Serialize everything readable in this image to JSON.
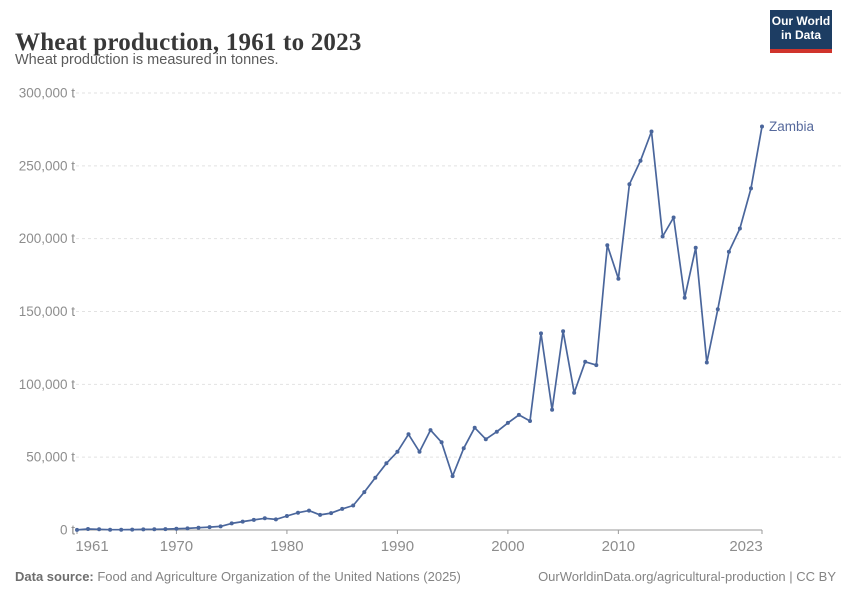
{
  "header": {
    "title": "Wheat production, 1961 to 2023",
    "subtitle": "Wheat production is measured in tonnes."
  },
  "logo": {
    "line1": "Our World",
    "line2": "in Data"
  },
  "colors": {
    "line": "#4a669c",
    "entity_label": "#56699c",
    "grid": "#e2e2e2",
    "axis": "#999999",
    "tick_text": "#8d8d8d",
    "logo_bg": "#1d3d63",
    "logo_accent": "#d0342c"
  },
  "chart_data": {
    "type": "line",
    "title": "Wheat production, 1961 to 2023",
    "unit": "tonnes",
    "xlabel": "",
    "ylabel": "",
    "xlim": [
      1961,
      2023
    ],
    "ylim": [
      0,
      300000
    ],
    "grid": "horizontal-dashed",
    "legend_position": "end-of-line-label",
    "x_ticks": [
      1961,
      1970,
      1980,
      1990,
      2000,
      2010,
      2023
    ],
    "y_ticks": [
      {
        "value": 0,
        "label": "0 t"
      },
      {
        "value": 50000,
        "label": "50,000 t"
      },
      {
        "value": 100000,
        "label": "100,000 t"
      },
      {
        "value": 150000,
        "label": "150,000 t"
      },
      {
        "value": 200000,
        "label": "200,000 t"
      },
      {
        "value": 250000,
        "label": "250,000 t"
      },
      {
        "value": 300000,
        "label": "300,000 t"
      }
    ],
    "x": [
      1961,
      1962,
      1963,
      1964,
      1965,
      1966,
      1967,
      1968,
      1969,
      1970,
      1971,
      1972,
      1973,
      1974,
      1975,
      1976,
      1977,
      1978,
      1979,
      1980,
      1981,
      1982,
      1983,
      1984,
      1985,
      1986,
      1987,
      1988,
      1989,
      1990,
      1991,
      1992,
      1993,
      1994,
      1995,
      1996,
      1997,
      1998,
      1999,
      2000,
      2001,
      2002,
      2003,
      2004,
      2005,
      2006,
      2007,
      2008,
      2009,
      2010,
      2011,
      2012,
      2013,
      2014,
      2015,
      2016,
      2017,
      2018,
      2019,
      2020,
      2021,
      2022,
      2023
    ],
    "series": [
      {
        "name": "Zambia",
        "values": [
          100,
          700,
          500,
          200,
          200,
          300,
          400,
          500,
          600,
          900,
          1100,
          1600,
          2000,
          2500,
          4500,
          5800,
          6900,
          8000,
          7300,
          9600,
          11900,
          13300,
          10400,
          11600,
          14500,
          16800,
          26000,
          35900,
          45800,
          53700,
          65700,
          53700,
          68600,
          60200,
          37000,
          56100,
          70200,
          62300,
          67500,
          73500,
          79000,
          74800,
          135000,
          82500,
          136500,
          94200,
          115500,
          113200,
          195500,
          172500,
          237300,
          253500,
          273600,
          201500,
          214500,
          159500,
          193700,
          115000,
          151500,
          191000,
          207000,
          234500,
          277000
        ]
      }
    ]
  },
  "footer": {
    "datasource_label": "Data source:",
    "datasource_text": " Food and Agriculture Organization of the United Nations (2025)",
    "credit": "OurWorldinData.org/agricultural-production | CC BY"
  }
}
